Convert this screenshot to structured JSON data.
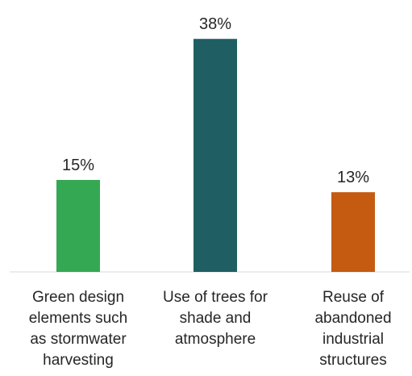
{
  "chart_data": {
    "type": "bar",
    "title": "",
    "xlabel": "",
    "ylabel": "",
    "categories": [
      [
        "Green design",
        "elements such",
        "as stormwater",
        "harvesting"
      ],
      [
        "Use of trees for",
        "shade and",
        "atmosphere"
      ],
      [
        "Reuse of",
        "abandoned",
        "industrial",
        "structures"
      ]
    ],
    "values": [
      15,
      38,
      13
    ],
    "data_labels": [
      "15%",
      "38%",
      "13%"
    ],
    "bar_colors": [
      "#35a853",
      "#1f5f63",
      "#c55a11"
    ],
    "ylim": [
      0,
      40
    ],
    "grid": false,
    "legend": "none"
  }
}
